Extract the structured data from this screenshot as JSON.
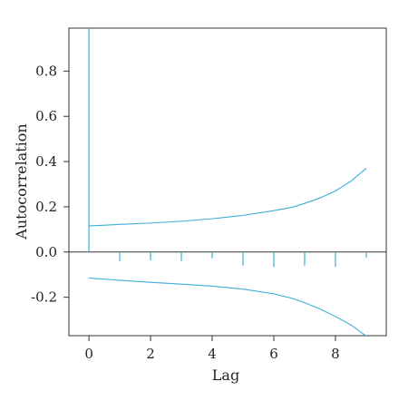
{
  "chart_data": {
    "type": "line",
    "title": "",
    "xlabel": "Lag",
    "ylabel": "Autocorrelation",
    "xlim": [
      -0.65,
      9.65
    ],
    "ylim": [
      -0.37,
      0.99
    ],
    "x_ticks": [
      0,
      2,
      4,
      6,
      8
    ],
    "y_ticks": [
      -0.2,
      0.0,
      0.2,
      0.4,
      0.6,
      0.8
    ],
    "y_tick_labels": [
      "-0.2",
      "0.0",
      "0.2",
      "0.4",
      "0.6",
      "0.8"
    ],
    "grid": false,
    "color": "#3aaed8",
    "series": [
      {
        "kind": "spikes",
        "x": [
          0,
          1,
          2,
          3,
          4,
          5,
          6,
          7,
          8,
          9
        ],
        "y": [
          1.0,
          -0.04,
          -0.037,
          -0.039,
          -0.028,
          -0.06,
          -0.066,
          -0.06,
          -0.066,
          -0.025
        ]
      },
      {
        "kind": "upper-bound",
        "x": [
          0,
          1,
          2,
          3,
          4,
          5,
          6,
          6.6,
          7,
          7.5,
          8,
          8.5,
          9
        ],
        "y": [
          0.115,
          0.122,
          0.128,
          0.136,
          0.147,
          0.162,
          0.183,
          0.198,
          0.215,
          0.239,
          0.27,
          0.313,
          0.37
        ]
      },
      {
        "kind": "lower-bound",
        "x": [
          0,
          1,
          2,
          3,
          4,
          5,
          6,
          6.6,
          7,
          7.5,
          8,
          8.5,
          9
        ],
        "y": [
          -0.115,
          -0.125,
          -0.134,
          -0.142,
          -0.151,
          -0.164,
          -0.185,
          -0.205,
          -0.224,
          -0.252,
          -0.285,
          -0.322,
          -0.372
        ]
      }
    ]
  }
}
